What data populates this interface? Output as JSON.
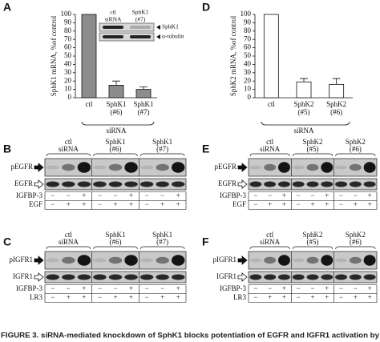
{
  "chart_data": [
    {
      "type": "bar",
      "letter": "A",
      "y_label": "SphK1 mRNA, %of control",
      "categories": [
        [
          "ctl"
        ],
        [
          "SphK1",
          "(#6)"
        ],
        [
          "SphK1",
          "(#7)"
        ]
      ],
      "values": [
        100,
        15,
        10
      ],
      "errors": [
        null,
        5,
        3
      ],
      "color": "#8c8c8c",
      "ylim": [
        0,
        100
      ],
      "yticks": [
        0,
        10,
        20,
        30,
        40,
        50,
        60,
        70,
        80,
        90,
        100
      ],
      "group_label": "siRNA",
      "inset": {
        "columns": [
          [
            "ctl",
            "siRNA"
          ],
          [
            "SphK1",
            "(#7)"
          ]
        ],
        "rows": [
          "SphK1",
          "α-tubulin"
        ]
      }
    },
    {
      "type": "bar",
      "letter": "D",
      "y_label": "SphK2 mRNA, %of control",
      "categories": [
        [
          "ctl"
        ],
        [
          "SphK2",
          "(#5)"
        ],
        [
          "SphK2",
          "(#6)"
        ]
      ],
      "values": [
        100,
        19,
        16
      ],
      "errors": [
        null,
        4,
        7
      ],
      "color": "#ffffff",
      "ylim": [
        0,
        100
      ],
      "yticks": [
        0,
        10,
        20,
        30,
        40,
        50,
        60,
        70,
        80,
        90,
        100
      ],
      "group_label": "siRNA"
    }
  ],
  "blots": [
    {
      "letter": "B",
      "groups": [
        [
          "ctl",
          "siRNA"
        ],
        [
          "SphK1",
          "(#6)"
        ],
        [
          "SphK1",
          "(#7)"
        ]
      ],
      "rows": [
        "pEGFR",
        "EGFR"
      ],
      "treatments": [
        {
          "name": "IGFBP-3",
          "signs": [
            "−",
            "−",
            "+",
            "−",
            "−",
            "+",
            "−",
            "−",
            "+"
          ]
        },
        {
          "name": "EGF",
          "signs": [
            "−",
            "+",
            "+",
            "−",
            "+",
            "+",
            "−",
            "+",
            "+"
          ]
        }
      ]
    },
    {
      "letter": "C",
      "groups": [
        [
          "ctl",
          "siRNA"
        ],
        [
          "SphK1",
          "(#6)"
        ],
        [
          "SphK1",
          "(#7)"
        ]
      ],
      "rows": [
        "pIGFR1",
        "IGFR1"
      ],
      "treatments": [
        {
          "name": "IGFBP-3",
          "signs": [
            "−",
            "−",
            "+",
            "−",
            "−",
            "+",
            "−",
            "−",
            "+"
          ]
        },
        {
          "name": "LR3",
          "signs": [
            "−",
            "+",
            "+",
            "−",
            "+",
            "+",
            "−",
            "+",
            "+"
          ]
        }
      ]
    },
    {
      "letter": "E",
      "groups": [
        [
          "ctl",
          "siRNA"
        ],
        [
          "SphK2",
          "(#5)"
        ],
        [
          "SphK2",
          "(#6)"
        ]
      ],
      "rows": [
        "pEGFR",
        "EGFR"
      ],
      "treatments": [
        {
          "name": "IGFBP-3",
          "signs": [
            "−",
            "−",
            "+",
            "−",
            "−",
            "+",
            "−",
            "−",
            "+"
          ]
        },
        {
          "name": "EGF",
          "signs": [
            "−",
            "+",
            "+",
            "−",
            "+",
            "+",
            "−",
            "+",
            "+"
          ]
        }
      ]
    },
    {
      "letter": "F",
      "groups": [
        [
          "ctl",
          "siRNA"
        ],
        [
          "SphK2",
          "(#5)"
        ],
        [
          "SphK2",
          "(#6)"
        ]
      ],
      "rows": [
        "pIGFR1",
        "IGFR1"
      ],
      "treatments": [
        {
          "name": "IGFBP-3",
          "signs": [
            "−",
            "−",
            "+",
            "−",
            "−",
            "+",
            "−",
            "−",
            "+"
          ]
        },
        {
          "name": "LR3",
          "signs": [
            "−",
            "+",
            "+",
            "−",
            "+",
            "+",
            "−",
            "+",
            "+"
          ]
        }
      ]
    }
  ],
  "caption": "FIGURE 3. siRNA-mediated knockdown of SphK1 blocks potentiation of EGFR and IGFR1 activation by"
}
